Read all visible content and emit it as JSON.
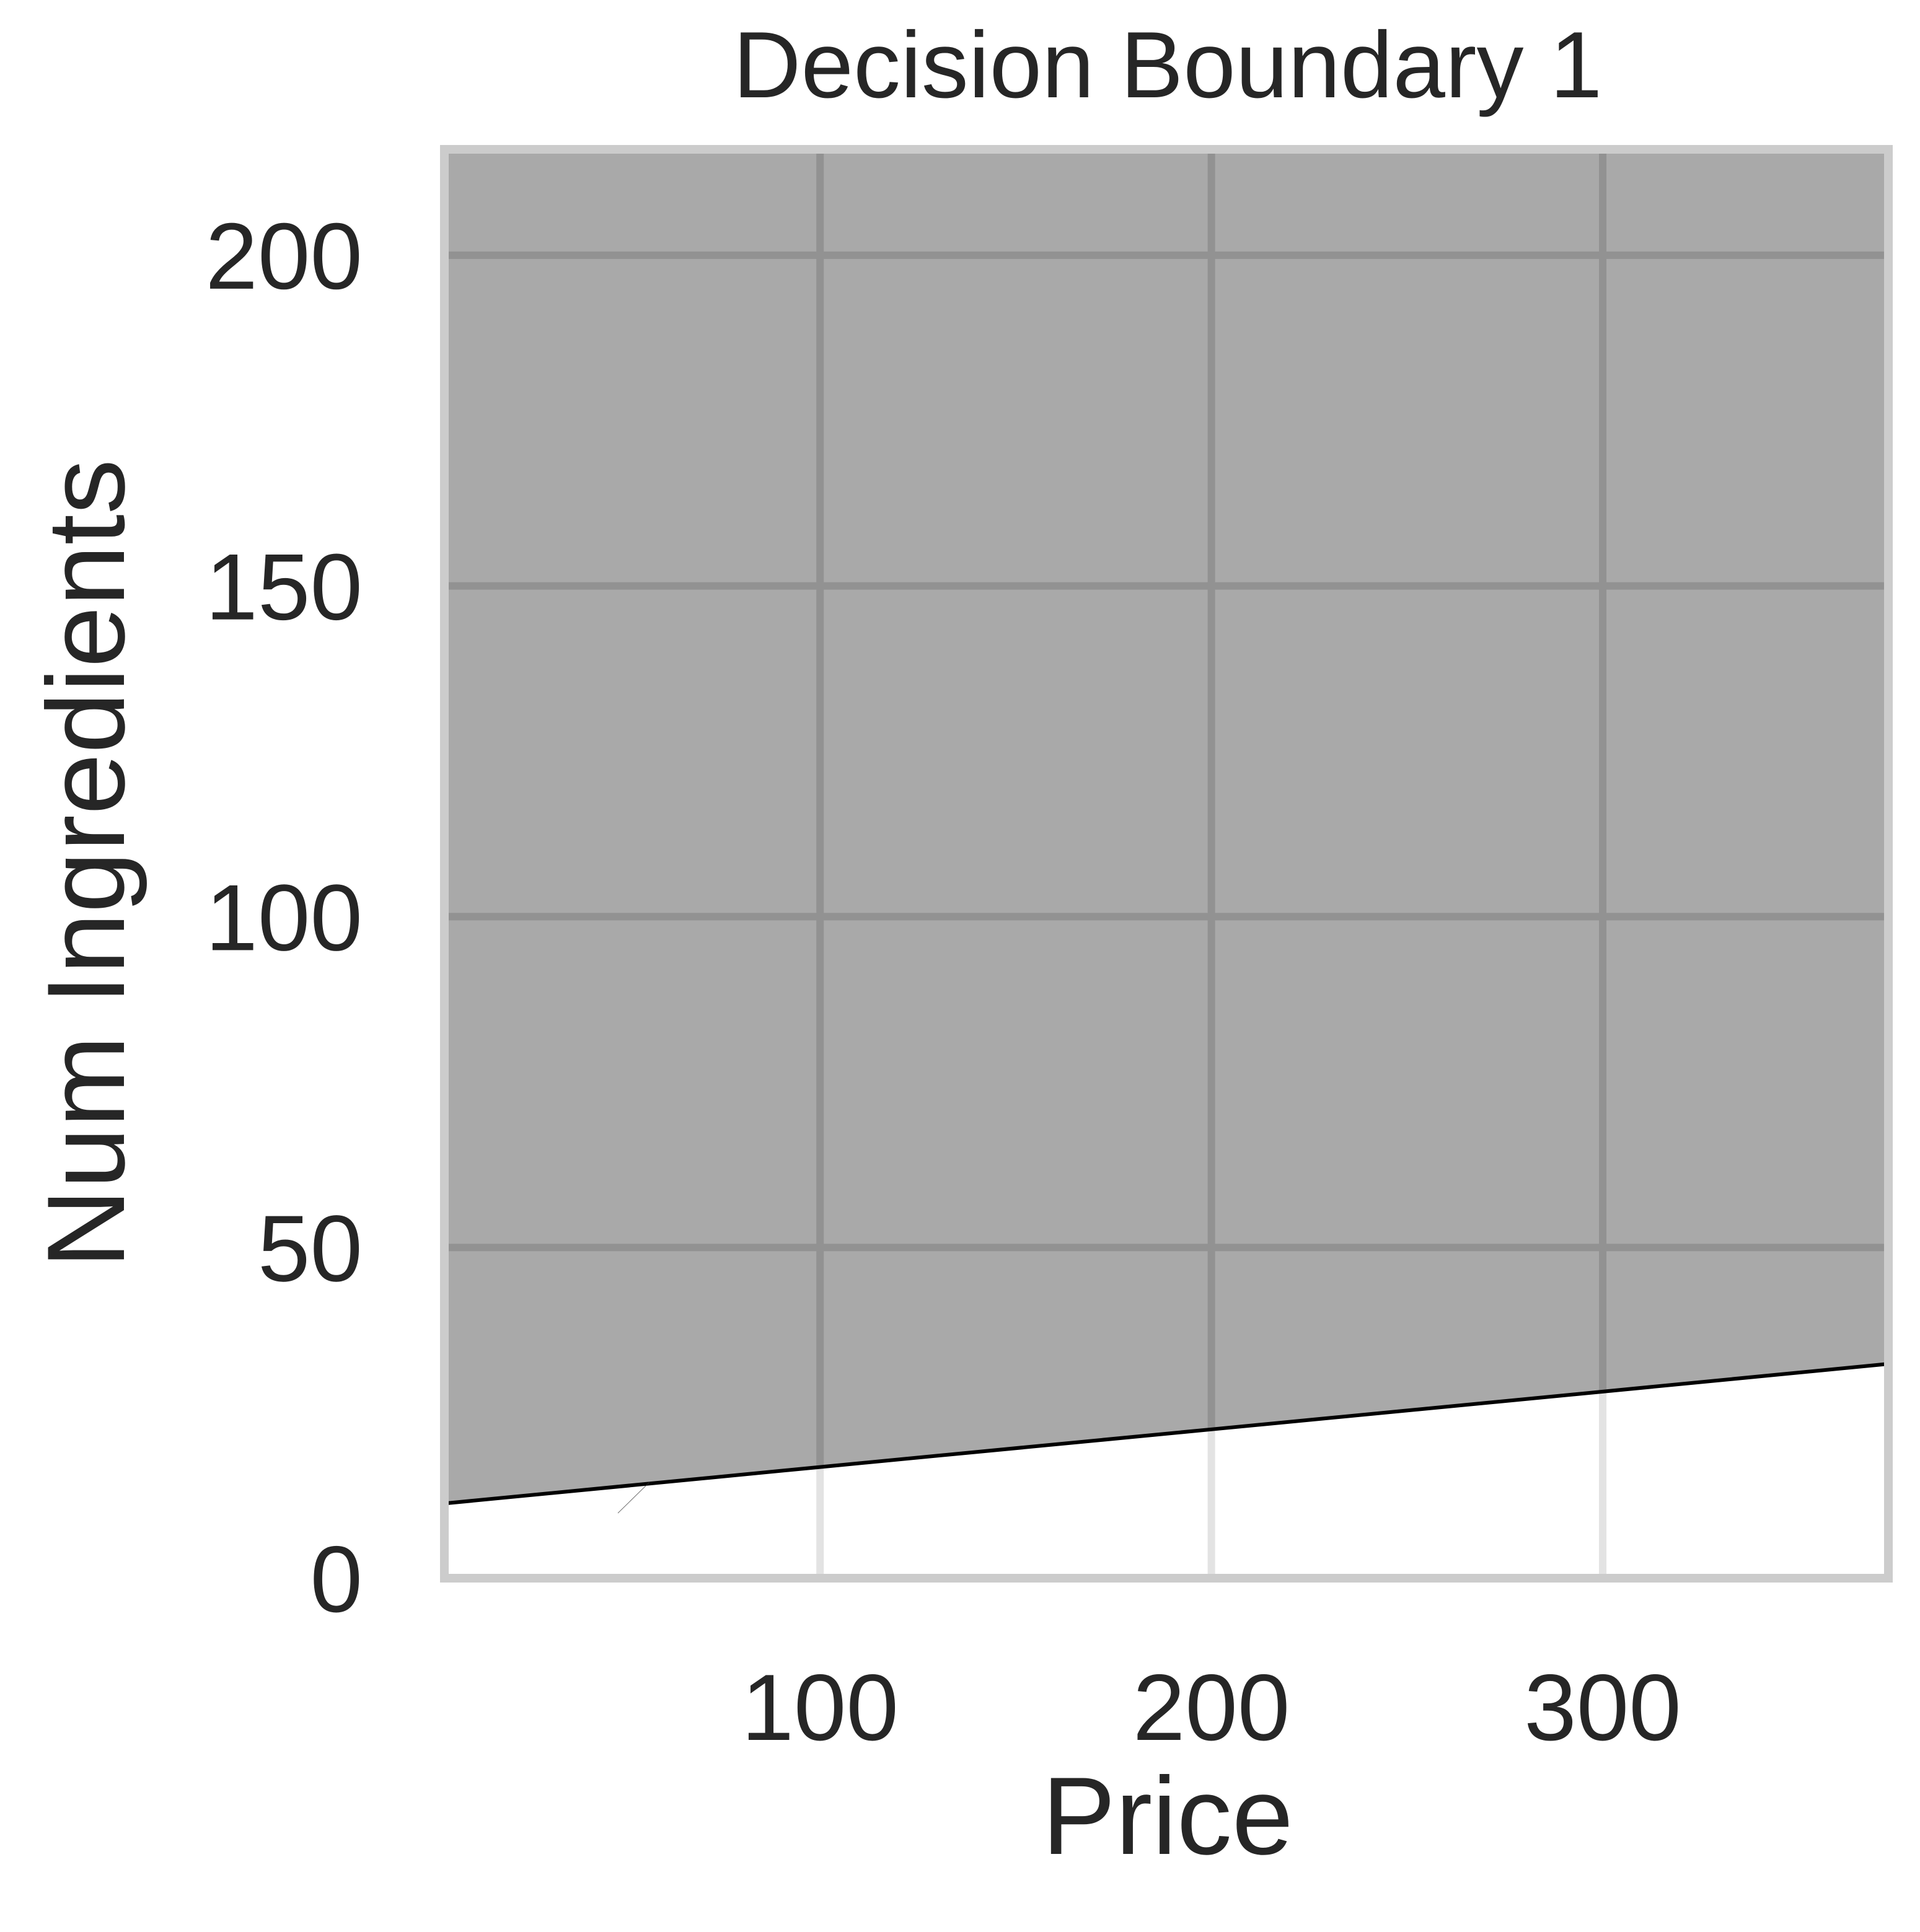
{
  "chart_data": {
    "type": "area",
    "title": "Decision Boundary 1",
    "xlabel": "Price",
    "ylabel": "Num Ingredients",
    "xlim": [
      4,
      373
    ],
    "ylim": [
      0,
      216
    ],
    "xticks": [
      100,
      200,
      300
    ],
    "xtick_labels": [
      "100",
      "200",
      "300"
    ],
    "yticks": [
      0,
      50,
      100,
      150,
      200
    ],
    "ytick_labels": [
      "0",
      "50",
      "100",
      "150",
      "200"
    ],
    "grid": true,
    "boundary": {
      "x": [
        4,
        100,
        200,
        300,
        373
      ],
      "y": [
        11.3,
        16.8,
        22.5,
        28.2,
        32.4
      ]
    },
    "colors": {
      "region_above": "#a9a9a9",
      "region_below": "#ffffff",
      "boundary_line": "#000000",
      "grid_on_fill": "#929292",
      "grid_on_white": "#e3e3e3",
      "frame": "#cccccc",
      "text": "#262626"
    }
  }
}
